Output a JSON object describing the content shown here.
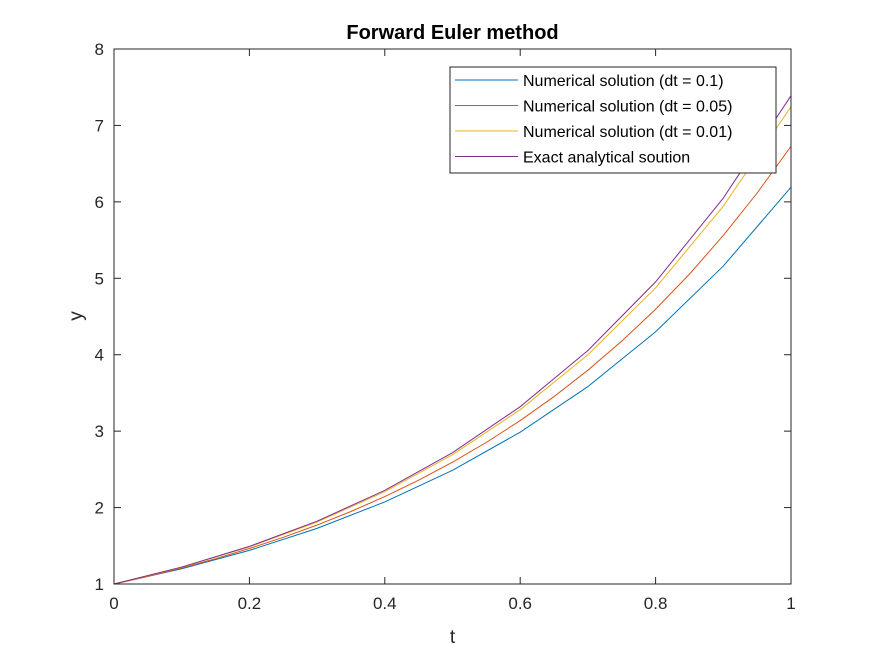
{
  "chart_data": {
    "type": "line",
    "title": "Forward Euler method",
    "xlabel": "t",
    "ylabel": "y",
    "xlim": [
      0,
      1
    ],
    "ylim": [
      1,
      8
    ],
    "xticks": [
      0,
      0.2,
      0.4,
      0.6,
      0.8,
      1
    ],
    "xtick_labels": [
      "0",
      "0.2",
      "0.4",
      "0.6",
      "0.8",
      "1"
    ],
    "yticks": [
      1,
      2,
      3,
      4,
      5,
      6,
      7,
      8
    ],
    "ytick_labels": [
      "1",
      "2",
      "3",
      "4",
      "5",
      "6",
      "7",
      "8"
    ],
    "grid": false,
    "legend_position": "top-right",
    "series": [
      {
        "name": "Numerical solution (dt = 0.1)",
        "color": "#0072BD",
        "x": [
          0,
          0.1,
          0.2,
          0.3,
          0.4,
          0.5,
          0.6,
          0.7,
          0.8,
          0.9,
          1.0
        ],
        "y": [
          1.0,
          1.2,
          1.44,
          1.728,
          2.074,
          2.488,
          2.986,
          3.583,
          4.3,
          5.16,
          6.192
        ]
      },
      {
        "name": "Numerical solution (dt = 0.05)",
        "color": "#D95319",
        "x": [
          0,
          0.05,
          0.1,
          0.15,
          0.2,
          0.25,
          0.3,
          0.35,
          0.4,
          0.45,
          0.5,
          0.55,
          0.6,
          0.65,
          0.7,
          0.75,
          0.8,
          0.85,
          0.9,
          0.95,
          1.0
        ],
        "y": [
          1.0,
          1.1,
          1.21,
          1.331,
          1.4641,
          1.6105,
          1.7716,
          1.9487,
          2.1436,
          2.3579,
          2.5937,
          2.8531,
          3.1384,
          3.4523,
          3.7975,
          4.1772,
          4.595,
          5.0545,
          5.5599,
          6.1159,
          6.7275
        ]
      },
      {
        "name": "Numerical solution (dt = 0.01)",
        "color": "#EDB120",
        "x": [
          0,
          0.1,
          0.2,
          0.3,
          0.4,
          0.5,
          0.6,
          0.7,
          0.8,
          0.9,
          1.0
        ],
        "y": [
          1.0,
          1.219,
          1.486,
          1.811,
          2.208,
          2.692,
          3.281,
          4.0,
          4.875,
          5.943,
          7.245
        ]
      },
      {
        "name": "Exact analytical soution",
        "color": "#7E2F8E",
        "x": [
          0,
          0.1,
          0.2,
          0.3,
          0.4,
          0.5,
          0.6,
          0.7,
          0.8,
          0.9,
          1.0
        ],
        "y": [
          1.0,
          1.2214,
          1.4918,
          1.8221,
          2.2255,
          2.7183,
          3.3201,
          4.0552,
          4.953,
          6.0496,
          7.3891
        ]
      }
    ]
  }
}
